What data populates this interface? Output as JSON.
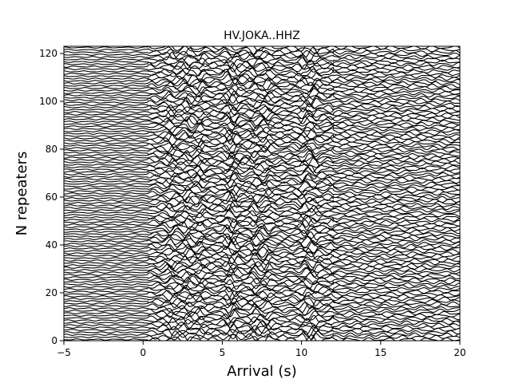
{
  "chart_data": {
    "type": "line",
    "title": "HV.JOKA..HHZ",
    "xlabel": "Arrival (s)",
    "ylabel": "N repeaters",
    "xlim": [
      -5,
      20
    ],
    "ylim": [
      0,
      123
    ],
    "xticks": [
      -5,
      0,
      5,
      10,
      15,
      20
    ],
    "yticks": [
      0,
      20,
      40,
      60,
      80,
      100,
      120
    ],
    "grid": false,
    "legend": "none",
    "trace_color": "#000000",
    "n_traces": 123,
    "trace_spacing": 1,
    "waveform_onset_s": 0.3,
    "prominent_arrivals_s": [
      1.8,
      2.8,
      3.6,
      5.4,
      5.8,
      7.0,
      7.8,
      10.2,
      10.8,
      12.2
    ]
  }
}
